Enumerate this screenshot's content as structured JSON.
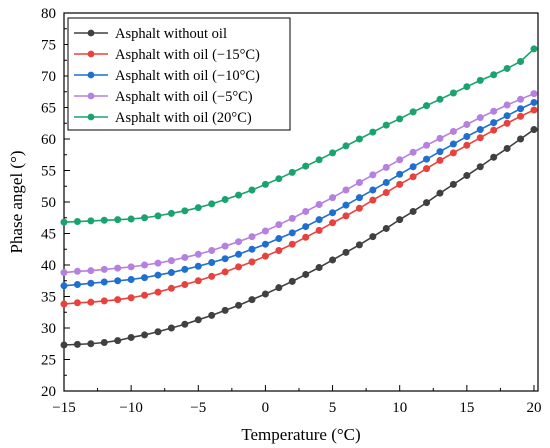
{
  "chart_data": {
    "type": "line",
    "title": "",
    "xlabel": "Temperature (°C)",
    "ylabel": "Phase angel (°)",
    "xlim": [
      -15,
      20.3
    ],
    "ylim": [
      20,
      80
    ],
    "xticks": [
      "−15",
      "−10",
      "−5",
      "0",
      "5",
      "10",
      "15",
      "20"
    ],
    "xtick_values": [
      -15,
      -10,
      -5,
      0,
      5,
      10,
      15,
      20
    ],
    "yticks": [
      "20",
      "25",
      "30",
      "35",
      "40",
      "45",
      "50",
      "55",
      "60",
      "65",
      "70",
      "75",
      "80"
    ],
    "ytick_values": [
      20,
      25,
      30,
      35,
      40,
      45,
      50,
      55,
      60,
      65,
      70,
      75,
      80
    ],
    "grid": false,
    "legend_position": "top-left",
    "marker": "circle",
    "x": [
      -15,
      -14,
      -13,
      -12,
      -11,
      -10,
      -9,
      -8,
      -7,
      -6,
      -5,
      -4,
      -3,
      -2,
      -1,
      0,
      1,
      2,
      3,
      4,
      5,
      6,
      7,
      8,
      9,
      10,
      11,
      12,
      13,
      14,
      15,
      16,
      17,
      18,
      19,
      20
    ],
    "series": [
      {
        "name": "Asphalt without oil",
        "color": "#404040",
        "values": [
          27.3,
          27.4,
          27.5,
          27.7,
          28.0,
          28.5,
          28.9,
          29.4,
          30.0,
          30.6,
          31.3,
          32.0,
          32.8,
          33.6,
          34.5,
          35.4,
          36.4,
          37.4,
          38.5,
          39.6,
          40.8,
          42.0,
          43.2,
          44.5,
          45.8,
          47.2,
          48.5,
          49.9,
          51.4,
          52.8,
          54.2,
          55.6,
          57.1,
          58.5,
          60.0,
          61.5
        ]
      },
      {
        "name": "Asphalt with oil (−15°C)",
        "color": "#e8423f",
        "values": [
          33.8,
          34.0,
          34.1,
          34.3,
          34.5,
          34.8,
          35.2,
          35.7,
          36.3,
          36.9,
          37.5,
          38.2,
          38.9,
          39.7,
          40.5,
          41.4,
          42.3,
          43.3,
          44.4,
          45.5,
          46.7,
          47.8,
          49.0,
          50.3,
          51.5,
          52.8,
          54.0,
          55.3,
          56.6,
          57.8,
          59.0,
          60.2,
          61.4,
          62.5,
          63.6,
          64.6
        ]
      },
      {
        "name": "Asphalt with oil (−10°C)",
        "color": "#1f6fd1",
        "values": [
          36.7,
          36.9,
          37.1,
          37.3,
          37.5,
          37.7,
          38.0,
          38.4,
          38.8,
          39.3,
          39.8,
          40.4,
          41.0,
          41.7,
          42.5,
          43.3,
          44.2,
          45.1,
          46.1,
          47.2,
          48.3,
          49.5,
          50.7,
          51.9,
          53.1,
          54.4,
          55.6,
          56.8,
          58.0,
          59.2,
          60.4,
          61.5,
          62.6,
          63.7,
          64.8,
          65.8
        ]
      },
      {
        "name": "Asphalt with oil  (−5°C)",
        "color": "#b580e0",
        "values": [
          38.8,
          39.0,
          39.1,
          39.3,
          39.5,
          39.7,
          40.0,
          40.3,
          40.7,
          41.2,
          41.7,
          42.3,
          43.0,
          43.7,
          44.5,
          45.4,
          46.4,
          47.4,
          48.5,
          49.6,
          50.7,
          51.9,
          53.1,
          54.3,
          55.5,
          56.7,
          57.9,
          59.0,
          60.1,
          61.2,
          62.3,
          63.4,
          64.4,
          65.4,
          66.3,
          67.2
        ]
      },
      {
        "name": "Asphalt with oil (20°C)",
        "color": "#1aa36f",
        "values": [
          46.8,
          46.9,
          47.0,
          47.1,
          47.2,
          47.3,
          47.5,
          47.8,
          48.2,
          48.6,
          49.1,
          49.7,
          50.4,
          51.1,
          51.9,
          52.8,
          53.7,
          54.7,
          55.7,
          56.7,
          57.8,
          58.9,
          60.0,
          61.1,
          62.2,
          63.2,
          64.3,
          65.3,
          66.3,
          67.3,
          68.3,
          69.3,
          70.2,
          71.2,
          72.3,
          74.3
        ]
      }
    ]
  }
}
